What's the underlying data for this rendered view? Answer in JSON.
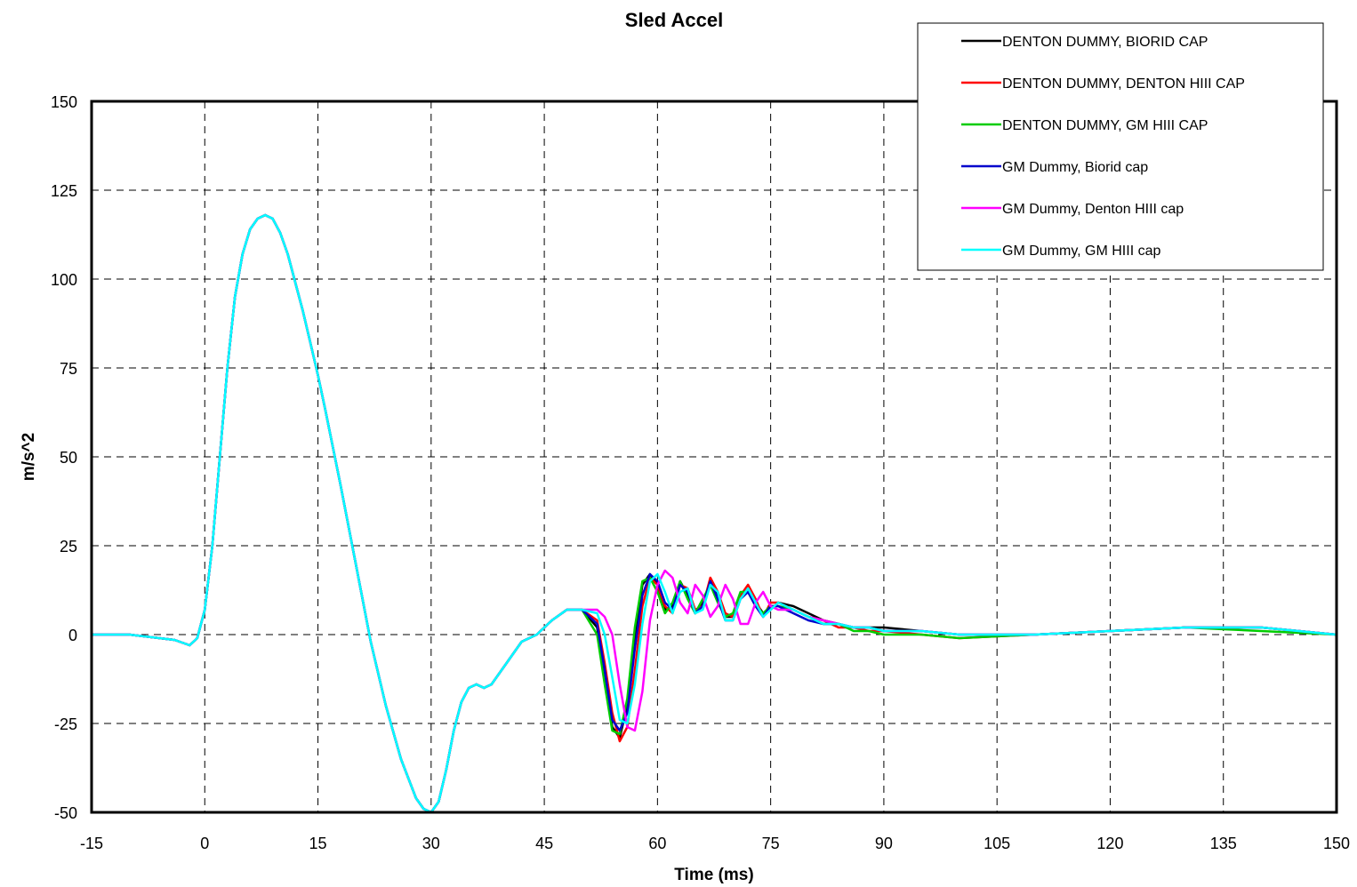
{
  "chart_data": {
    "type": "line",
    "title": "Sled Accel",
    "xlabel": "Time (ms)",
    "ylabel": "m/s^2",
    "xlim": [
      -15,
      150
    ],
    "ylim": [
      -50,
      150
    ],
    "xticks": [
      -15,
      0,
      15,
      30,
      45,
      60,
      75,
      90,
      105,
      120,
      135,
      150
    ],
    "yticks": [
      -50,
      -25,
      0,
      25,
      50,
      75,
      100,
      125,
      150
    ],
    "grid": true,
    "legend_position": "top-right",
    "base_x": [
      -15,
      -10,
      -6,
      -4,
      -2,
      -1,
      0,
      1,
      2,
      3,
      4,
      5,
      6,
      7,
      8,
      9,
      10,
      11,
      12,
      13,
      14,
      15,
      16,
      18,
      20,
      22,
      24,
      26,
      28,
      29,
      30,
      31,
      32,
      33,
      34,
      35,
      36,
      37,
      38,
      40,
      42,
      44,
      46,
      48,
      50
    ],
    "base_y": [
      0,
      0,
      -1,
      -1.5,
      -3,
      -1,
      7,
      25,
      50,
      75,
      95,
      107,
      114,
      117,
      118,
      117,
      113,
      107,
      99,
      91,
      82,
      73,
      63,
      42,
      20,
      -2,
      -20,
      -35,
      -46,
      -49,
      -50,
      -47,
      -38,
      -27,
      -19,
      -15,
      -14,
      -15,
      -14,
      -8,
      -2,
      0,
      4,
      7,
      7
    ],
    "series": [
      {
        "name": "DENTON DUMMY, BIORID CAP",
        "color": "#000000",
        "tail_x": [
          52,
          53,
          54,
          55,
          56,
          57,
          58,
          59,
          60,
          61,
          62,
          63,
          64,
          65,
          66,
          67,
          68,
          69,
          70,
          71,
          72,
          73,
          74,
          75,
          76,
          78,
          80,
          82,
          84,
          86,
          88,
          90,
          95,
          100,
          110,
          120,
          130,
          140,
          150
        ],
        "tail_y": [
          2,
          -12,
          -26,
          -29,
          -20,
          0,
          14,
          17,
          14,
          7,
          8,
          15,
          11,
          6,
          9,
          15,
          11,
          5,
          5,
          11,
          13,
          9,
          6,
          7,
          9,
          8,
          6,
          4,
          3,
          2,
          2,
          2,
          1,
          0,
          0,
          1,
          2,
          2,
          0
        ]
      },
      {
        "name": "DENTON DUMMY, DENTON HIII CAP",
        "color": "#ff0000",
        "tail_x": [
          52,
          53,
          54,
          55,
          56,
          57,
          58,
          59,
          60,
          61,
          62,
          63,
          64,
          65,
          66,
          67,
          68,
          69,
          70,
          71,
          72,
          73,
          74,
          75,
          76,
          78,
          80,
          82,
          84,
          86,
          88,
          90,
          95,
          100,
          110,
          120,
          130,
          140,
          150
        ],
        "tail_y": [
          4,
          -8,
          -22,
          -30,
          -26,
          -10,
          8,
          16,
          14,
          8,
          6,
          14,
          13,
          7,
          8,
          16,
          12,
          6,
          5,
          11,
          14,
          10,
          5,
          9,
          9,
          7,
          5,
          4,
          2,
          2,
          1,
          1,
          0,
          -1,
          0,
          1,
          2,
          2,
          0
        ]
      },
      {
        "name": "DENTON DUMMY, GM HIII CAP",
        "color": "#00cc00",
        "tail_x": [
          52,
          53,
          54,
          55,
          56,
          57,
          58,
          59,
          60,
          61,
          62,
          63,
          64,
          65,
          66,
          67,
          68,
          69,
          70,
          71,
          72,
          73,
          74,
          75,
          76,
          78,
          80,
          82,
          84,
          86,
          88,
          90,
          95,
          100,
          110,
          120,
          130,
          140,
          150
        ],
        "tail_y": [
          0,
          -14,
          -27,
          -28,
          -18,
          2,
          15,
          16,
          12,
          6,
          9,
          15,
          10,
          6,
          10,
          14,
          9,
          5,
          6,
          12,
          12,
          8,
          6,
          8,
          8,
          7,
          5,
          3,
          3,
          1,
          1,
          0,
          0,
          -1,
          0,
          1,
          2,
          1,
          0
        ]
      },
      {
        "name": "GM Dummy, Biorid cap",
        "color": "#0000cc",
        "tail_x": [
          52,
          53,
          54,
          55,
          56,
          57,
          58,
          59,
          60,
          61,
          62,
          63,
          64,
          65,
          66,
          67,
          68,
          69,
          70,
          71,
          72,
          73,
          74,
          75,
          76,
          78,
          80,
          82,
          84,
          86,
          88,
          90,
          95,
          100,
          110,
          120,
          130,
          140,
          150
        ],
        "tail_y": [
          3,
          -10,
          -24,
          -27,
          -22,
          -4,
          11,
          17,
          15,
          9,
          7,
          14,
          12,
          6,
          8,
          15,
          10,
          4,
          4,
          10,
          12,
          8,
          5,
          8,
          8,
          6,
          4,
          3,
          3,
          2,
          2,
          1,
          1,
          0,
          0,
          1,
          2,
          2,
          0
        ]
      },
      {
        "name": "GM Dummy, Denton HIII cap",
        "color": "#ff00ff",
        "tail_x": [
          52,
          53,
          54,
          55,
          56,
          57,
          58,
          59,
          60,
          61,
          62,
          63,
          64,
          65,
          66,
          67,
          68,
          69,
          70,
          71,
          72,
          73,
          74,
          75,
          76,
          78,
          80,
          82,
          84,
          86,
          88,
          90,
          95,
          100,
          110,
          120,
          130,
          140,
          150
        ],
        "tail_y": [
          7,
          5,
          0,
          -14,
          -26,
          -27,
          -16,
          4,
          14,
          18,
          16,
          9,
          6,
          14,
          11,
          5,
          8,
          14,
          10,
          3,
          3,
          9,
          12,
          8,
          7,
          7,
          5,
          4,
          3,
          2,
          2,
          1,
          1,
          0,
          0,
          1,
          2,
          2,
          0
        ]
      },
      {
        "name": "GM Dummy, GM HIII cap",
        "color": "#00ffff",
        "tail_x": [
          52,
          53,
          54,
          55,
          56,
          57,
          58,
          59,
          60,
          61,
          62,
          63,
          64,
          65,
          66,
          67,
          68,
          69,
          70,
          71,
          72,
          73,
          74,
          75,
          76,
          78,
          80,
          82,
          84,
          86,
          88,
          90,
          95,
          100,
          110,
          120,
          130,
          140,
          150
        ],
        "tail_y": [
          6,
          0,
          -12,
          -24,
          -25,
          -14,
          3,
          15,
          17,
          12,
          6,
          12,
          13,
          6,
          7,
          14,
          12,
          4,
          4,
          10,
          13,
          9,
          5,
          7,
          9,
          7,
          5,
          3,
          3,
          2,
          2,
          1,
          1,
          0,
          0,
          1,
          2,
          2,
          0
        ]
      }
    ]
  }
}
